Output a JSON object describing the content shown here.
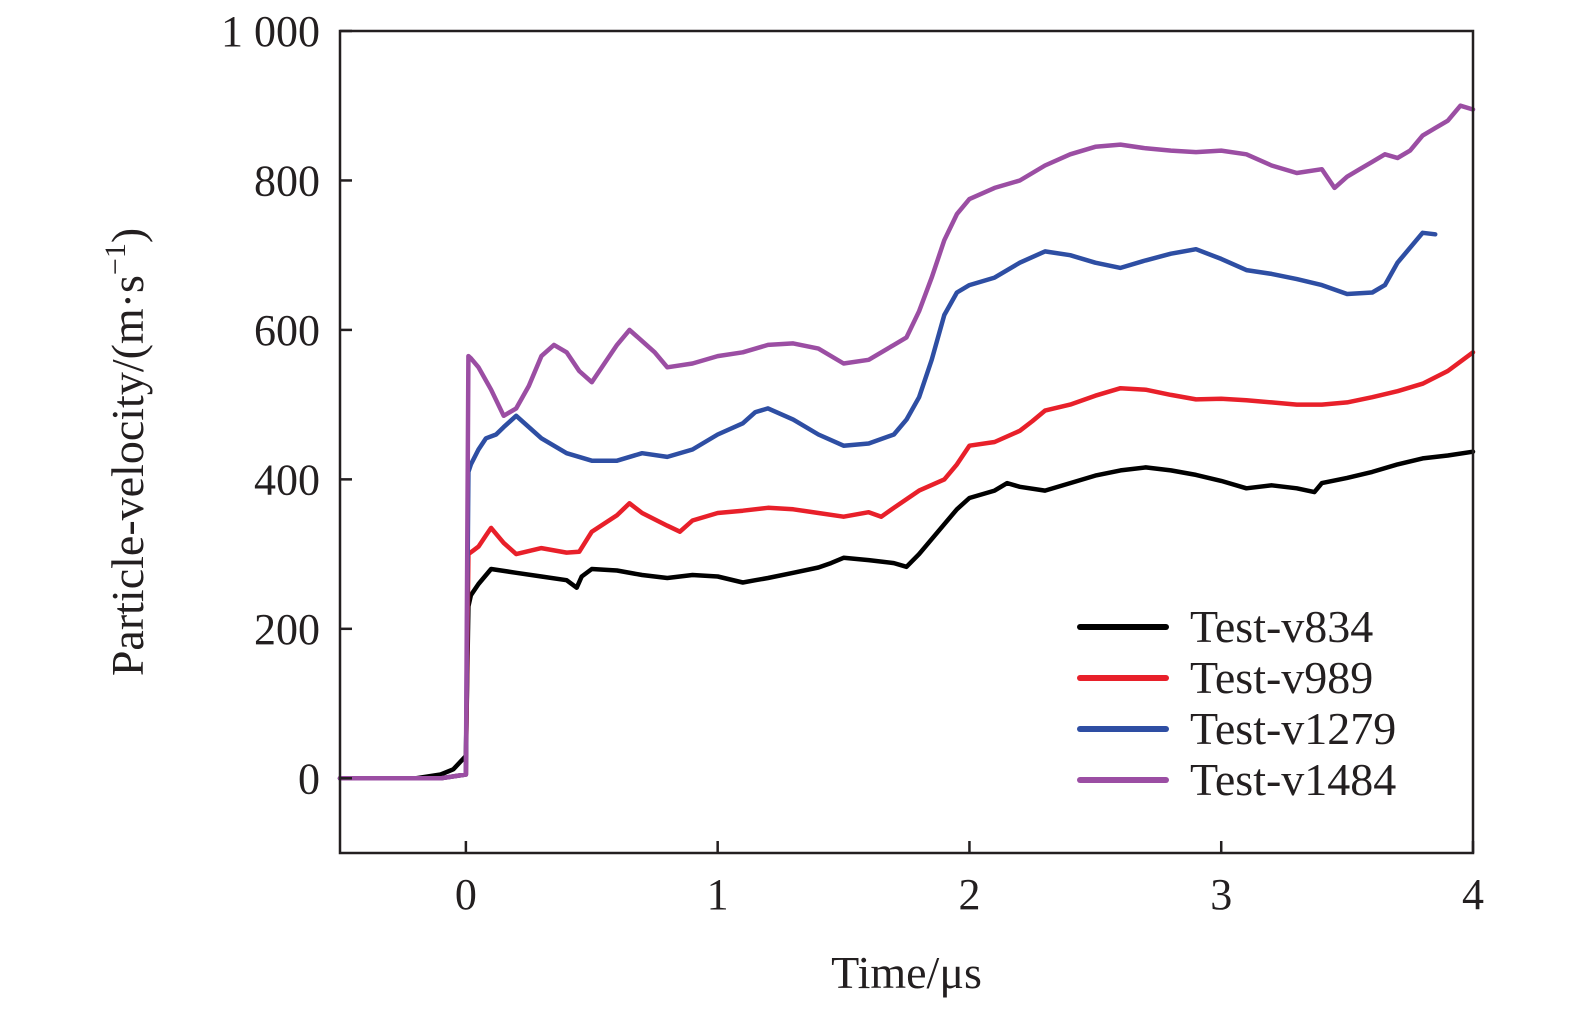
{
  "chart_data": {
    "type": "line",
    "xlabel": "Time/μs",
    "ylabel_main": "Particle-velocity/(m·s",
    "ylabel_sup": "−1",
    "ylabel_close": ")",
    "xlim": [
      -0.5,
      4
    ],
    "ylim": [
      -100,
      1000
    ],
    "x_ticks": [
      0,
      1,
      2,
      3,
      4
    ],
    "x_tick_labels": [
      "0",
      "1",
      "2",
      "3",
      "4"
    ],
    "y_ticks": [
      0,
      200,
      400,
      600,
      800,
      1000
    ],
    "y_tick_labels": [
      "0",
      "200",
      "400",
      "600",
      "800",
      "1 000"
    ],
    "grid": false,
    "legend_position": "bottom-right",
    "series": [
      {
        "name": "Test-v834",
        "color": "#000000",
        "x": [
          -0.5,
          -0.2,
          -0.1,
          -0.05,
          0.0,
          0.01,
          0.02,
          0.05,
          0.1,
          0.2,
          0.3,
          0.4,
          0.44,
          0.46,
          0.5,
          0.6,
          0.7,
          0.8,
          0.9,
          1.0,
          1.1,
          1.15,
          1.2,
          1.3,
          1.4,
          1.45,
          1.5,
          1.6,
          1.7,
          1.75,
          1.8,
          1.9,
          1.95,
          2.0,
          2.1,
          2.15,
          2.2,
          2.3,
          2.4,
          2.5,
          2.6,
          2.7,
          2.8,
          2.9,
          3.0,
          3.1,
          3.2,
          3.3,
          3.37,
          3.4,
          3.5,
          3.6,
          3.7,
          3.8,
          3.9,
          4.0
        ],
        "y": [
          0,
          0,
          5,
          12,
          30,
          230,
          245,
          260,
          280,
          275,
          270,
          265,
          255,
          270,
          280,
          278,
          272,
          268,
          272,
          270,
          262,
          265,
          268,
          275,
          282,
          288,
          295,
          292,
          288,
          283,
          300,
          340,
          360,
          375,
          385,
          395,
          390,
          385,
          395,
          405,
          412,
          416,
          412,
          406,
          398,
          388,
          392,
          388,
          383,
          395,
          402,
          410,
          420,
          428,
          432,
          437
        ]
      },
      {
        "name": "Test-v989",
        "color": "#e8202a",
        "x": [
          -0.5,
          -0.1,
          0.0,
          0.01,
          0.03,
          0.05,
          0.08,
          0.1,
          0.15,
          0.2,
          0.3,
          0.4,
          0.45,
          0.5,
          0.6,
          0.65,
          0.7,
          0.8,
          0.85,
          0.9,
          1.0,
          1.1,
          1.2,
          1.3,
          1.4,
          1.5,
          1.6,
          1.65,
          1.7,
          1.8,
          1.9,
          1.95,
          2.0,
          2.1,
          2.2,
          2.25,
          2.3,
          2.4,
          2.5,
          2.6,
          2.7,
          2.8,
          2.9,
          3.0,
          3.1,
          3.2,
          3.3,
          3.4,
          3.5,
          3.6,
          3.7,
          3.8,
          3.9,
          4.0
        ],
        "y": [
          0,
          0,
          5,
          300,
          305,
          310,
          325,
          335,
          315,
          300,
          308,
          302,
          303,
          330,
          352,
          368,
          355,
          338,
          330,
          345,
          355,
          358,
          362,
          360,
          355,
          350,
          356,
          350,
          362,
          385,
          400,
          420,
          445,
          450,
          465,
          478,
          492,
          500,
          512,
          522,
          520,
          513,
          507,
          508,
          506,
          503,
          500,
          500,
          503,
          510,
          518,
          528,
          545,
          570
        ]
      },
      {
        "name": "Test-v1279",
        "color": "#2e4ea3",
        "x": [
          -0.5,
          -0.1,
          0.0,
          0.01,
          0.02,
          0.05,
          0.08,
          0.12,
          0.15,
          0.2,
          0.3,
          0.4,
          0.5,
          0.6,
          0.7,
          0.8,
          0.9,
          1.0,
          1.1,
          1.15,
          1.2,
          1.3,
          1.4,
          1.5,
          1.6,
          1.7,
          1.75,
          1.8,
          1.85,
          1.9,
          1.95,
          2.0,
          2.1,
          2.2,
          2.3,
          2.4,
          2.5,
          2.6,
          2.7,
          2.8,
          2.9,
          3.0,
          3.1,
          3.2,
          3.3,
          3.4,
          3.5,
          3.6,
          3.65,
          3.7,
          3.75,
          3.8,
          3.85
        ],
        "y": [
          0,
          0,
          5,
          410,
          420,
          440,
          455,
          460,
          470,
          485,
          455,
          435,
          425,
          425,
          435,
          430,
          440,
          460,
          475,
          490,
          495,
          480,
          460,
          445,
          448,
          460,
          480,
          510,
          560,
          620,
          650,
          660,
          670,
          690,
          705,
          700,
          690,
          683,
          693,
          702,
          708,
          695,
          680,
          675,
          668,
          660,
          648,
          650,
          660,
          690,
          710,
          730,
          728
        ]
      },
      {
        "name": "Test-v1484",
        "color": "#9b4ea3",
        "x": [
          -0.5,
          -0.1,
          0.0,
          0.01,
          0.02,
          0.05,
          0.1,
          0.15,
          0.2,
          0.25,
          0.3,
          0.35,
          0.4,
          0.45,
          0.5,
          0.55,
          0.6,
          0.65,
          0.7,
          0.75,
          0.8,
          0.9,
          1.0,
          1.1,
          1.2,
          1.3,
          1.4,
          1.5,
          1.6,
          1.7,
          1.75,
          1.8,
          1.85,
          1.9,
          1.95,
          2.0,
          2.1,
          2.2,
          2.3,
          2.4,
          2.5,
          2.6,
          2.7,
          2.8,
          2.9,
          3.0,
          3.1,
          3.2,
          3.3,
          3.4,
          3.45,
          3.5,
          3.55,
          3.6,
          3.65,
          3.7,
          3.75,
          3.8,
          3.85,
          3.9,
          3.95,
          4.0
        ],
        "y": [
          0,
          0,
          5,
          565,
          562,
          550,
          520,
          485,
          495,
          525,
          565,
          580,
          570,
          545,
          530,
          555,
          580,
          600,
          585,
          570,
          550,
          555,
          565,
          570,
          580,
          582,
          575,
          555,
          560,
          580,
          590,
          625,
          670,
          720,
          755,
          775,
          790,
          800,
          820,
          835,
          845,
          848,
          843,
          840,
          838,
          840,
          835,
          820,
          810,
          815,
          790,
          805,
          815,
          825,
          835,
          830,
          840,
          860,
          870,
          880,
          900,
          895
        ]
      }
    ]
  }
}
